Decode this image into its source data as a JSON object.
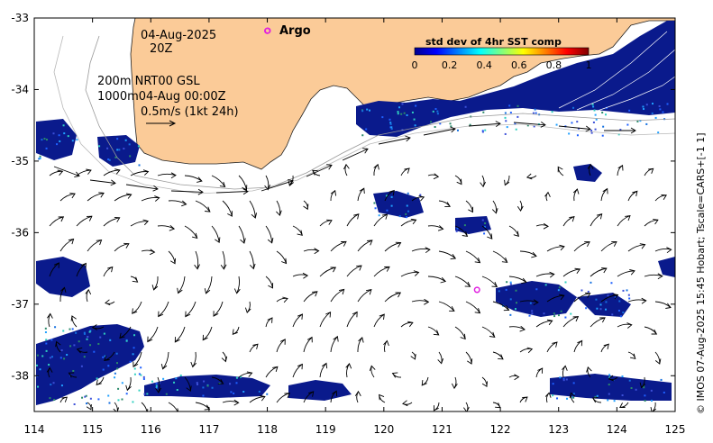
{
  "map": {
    "title_date": "04-Aug-2025",
    "title_time": "20Z",
    "line1": "200m  NRT00 GSL",
    "line2": "1000m04-Aug 00:00Z",
    "line3": "0.5m/s (1kt 24h)",
    "argo_label": "Argo",
    "credit": "© IMOS 07-Aug-2025 15:45 Hobart; Tscale=CARS+[-1 1]",
    "lon_ticks": [
      "114",
      "115",
      "116",
      "117",
      "118",
      "119",
      "120",
      "121",
      "122",
      "123",
      "124",
      "125"
    ],
    "lat_ticks": [
      "-33",
      "-34",
      "-35",
      "-36",
      "-37",
      "-38"
    ],
    "lon_range": [
      114,
      125
    ],
    "lat_range": [
      -38.5,
      -33
    ],
    "argo_floats": [
      {
        "lon": 118.0,
        "lat": -33.18
      },
      {
        "lon": 121.6,
        "lat": -36.8
      }
    ],
    "colors": {
      "land": "#fbcb98",
      "ocean": "#ffffff",
      "argo": "#e020e0",
      "sst_low": "#0a1a8c"
    }
  },
  "colorbar": {
    "title": "std dev of 4hr SST comp",
    "ticks": [
      "0",
      "0.2",
      "0.4",
      "0.6",
      "0.8",
      "1"
    ],
    "min": 0,
    "max": 1,
    "stops": [
      "#00008f",
      "#0000ff",
      "#0080ff",
      "#00ffff",
      "#80ff80",
      "#ffff00",
      "#ff8000",
      "#ff0000",
      "#800000"
    ]
  }
}
